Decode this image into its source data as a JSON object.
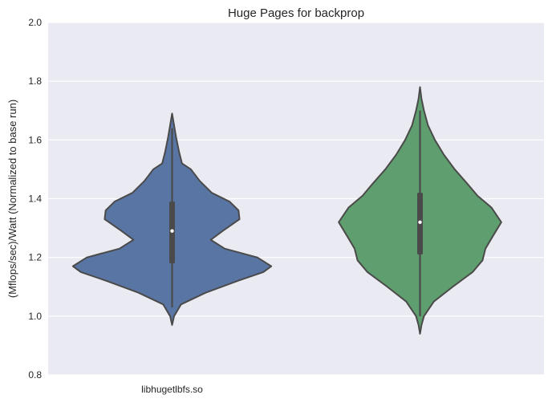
{
  "chart_data": {
    "type": "violin",
    "title": "Huge Pages for backprop",
    "xlabel": "",
    "ylabel": "(Mflops/sec)/Watt (Normalized to base run)",
    "ylim": [
      0.8,
      2.0
    ],
    "yticks": [
      "0.8",
      "1.0",
      "1.2",
      "1.4",
      "1.6",
      "1.8",
      "2.0"
    ],
    "grid": true,
    "categories": [
      "libhugetlbfs.so",
      ""
    ],
    "colors": {
      "background": "#eaeaf2",
      "grid": "#ffffff",
      "outline": "#4a4a4a"
    },
    "series": [
      {
        "color": "#5975a4",
        "min": 0.97,
        "max": 1.69,
        "q1": 1.18,
        "median": 1.29,
        "q3": 1.39,
        "whisker_low": 1.03,
        "whisker_high": 1.64,
        "density": [
          [
            0.97,
            0.0
          ],
          [
            1.0,
            0.02
          ],
          [
            1.04,
            0.09
          ],
          [
            1.08,
            0.34
          ],
          [
            1.12,
            0.66
          ],
          [
            1.15,
            0.92
          ],
          [
            1.17,
            1.0
          ],
          [
            1.2,
            0.86
          ],
          [
            1.23,
            0.53
          ],
          [
            1.26,
            0.39
          ],
          [
            1.29,
            0.51
          ],
          [
            1.33,
            0.68
          ],
          [
            1.36,
            0.67
          ],
          [
            1.39,
            0.58
          ],
          [
            1.42,
            0.4
          ],
          [
            1.46,
            0.28
          ],
          [
            1.5,
            0.19
          ],
          [
            1.52,
            0.1
          ],
          [
            1.56,
            0.07
          ],
          [
            1.61,
            0.04
          ],
          [
            1.66,
            0.015
          ],
          [
            1.69,
            0.0
          ]
        ]
      },
      {
        "color": "#5f9e6e",
        "min": 0.94,
        "max": 1.78,
        "q1": 1.21,
        "median": 1.32,
        "q3": 1.42,
        "whisker_low": 1.0,
        "whisker_high": 1.7,
        "density": [
          [
            0.94,
            0.0
          ],
          [
            0.97,
            0.015
          ],
          [
            1.0,
            0.04
          ],
          [
            1.05,
            0.14
          ],
          [
            1.1,
            0.33
          ],
          [
            1.15,
            0.53
          ],
          [
            1.19,
            0.63
          ],
          [
            1.23,
            0.66
          ],
          [
            1.27,
            0.73
          ],
          [
            1.32,
            0.82
          ],
          [
            1.37,
            0.72
          ],
          [
            1.41,
            0.58
          ],
          [
            1.45,
            0.48
          ],
          [
            1.5,
            0.35
          ],
          [
            1.55,
            0.24
          ],
          [
            1.6,
            0.15
          ],
          [
            1.65,
            0.08
          ],
          [
            1.7,
            0.04
          ],
          [
            1.74,
            0.015
          ],
          [
            1.78,
            0.0
          ]
        ]
      }
    ]
  }
}
